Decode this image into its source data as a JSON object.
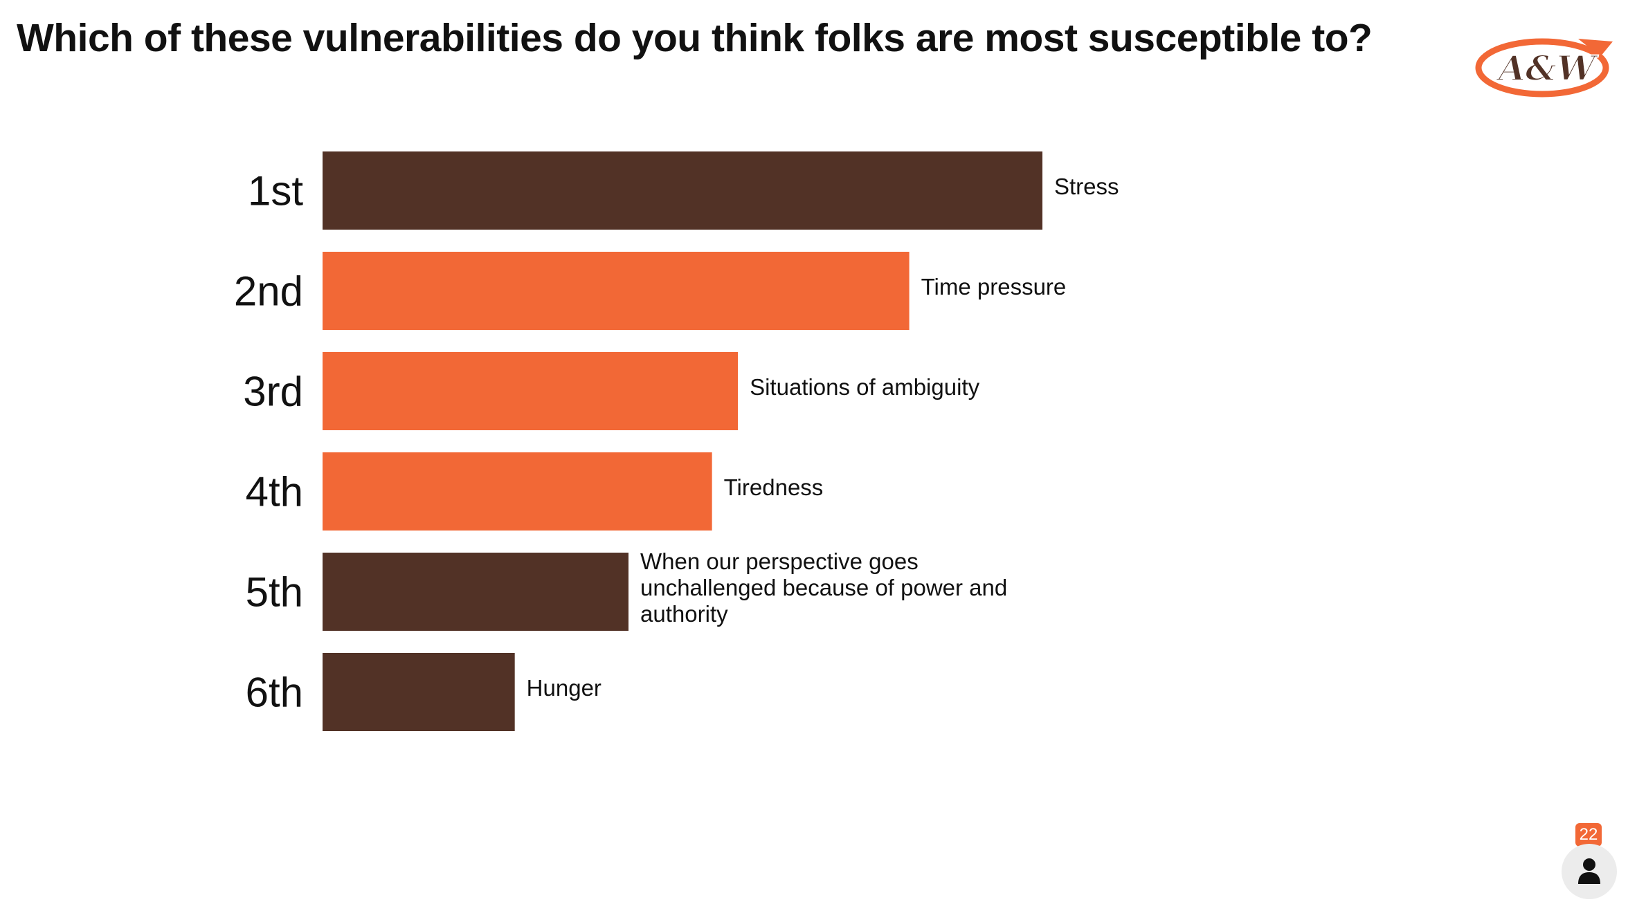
{
  "slide": {
    "question": "Which of these vulnerabilities do you think folks are most susceptible to?",
    "logo_text": "A&W",
    "participant_count": "22",
    "colors": {
      "brown": "#523226",
      "orange": "#f26836",
      "text": "#111111",
      "badge": "#f26836"
    }
  },
  "chart_data": {
    "type": "bar",
    "orientation": "horizontal",
    "title": "",
    "xlabel": "",
    "ylabel": "",
    "categories": [
      "1st",
      "2nd",
      "3rd",
      "4th",
      "5th",
      "6th"
    ],
    "items": [
      "Stress",
      "Time pressure",
      "Situations of ambiguity",
      "Tiredness",
      "When our perspective goes unchallenged because of power and authority",
      "Hunger"
    ],
    "values": [
      100,
      81.5,
      57.7,
      54.1,
      42.5,
      26.7
    ],
    "bar_colors": [
      "#523226",
      "#f26836",
      "#f26836",
      "#f26836",
      "#523226",
      "#523226"
    ],
    "xlim": [
      0,
      100
    ],
    "grid": false,
    "axes_visible": false
  }
}
